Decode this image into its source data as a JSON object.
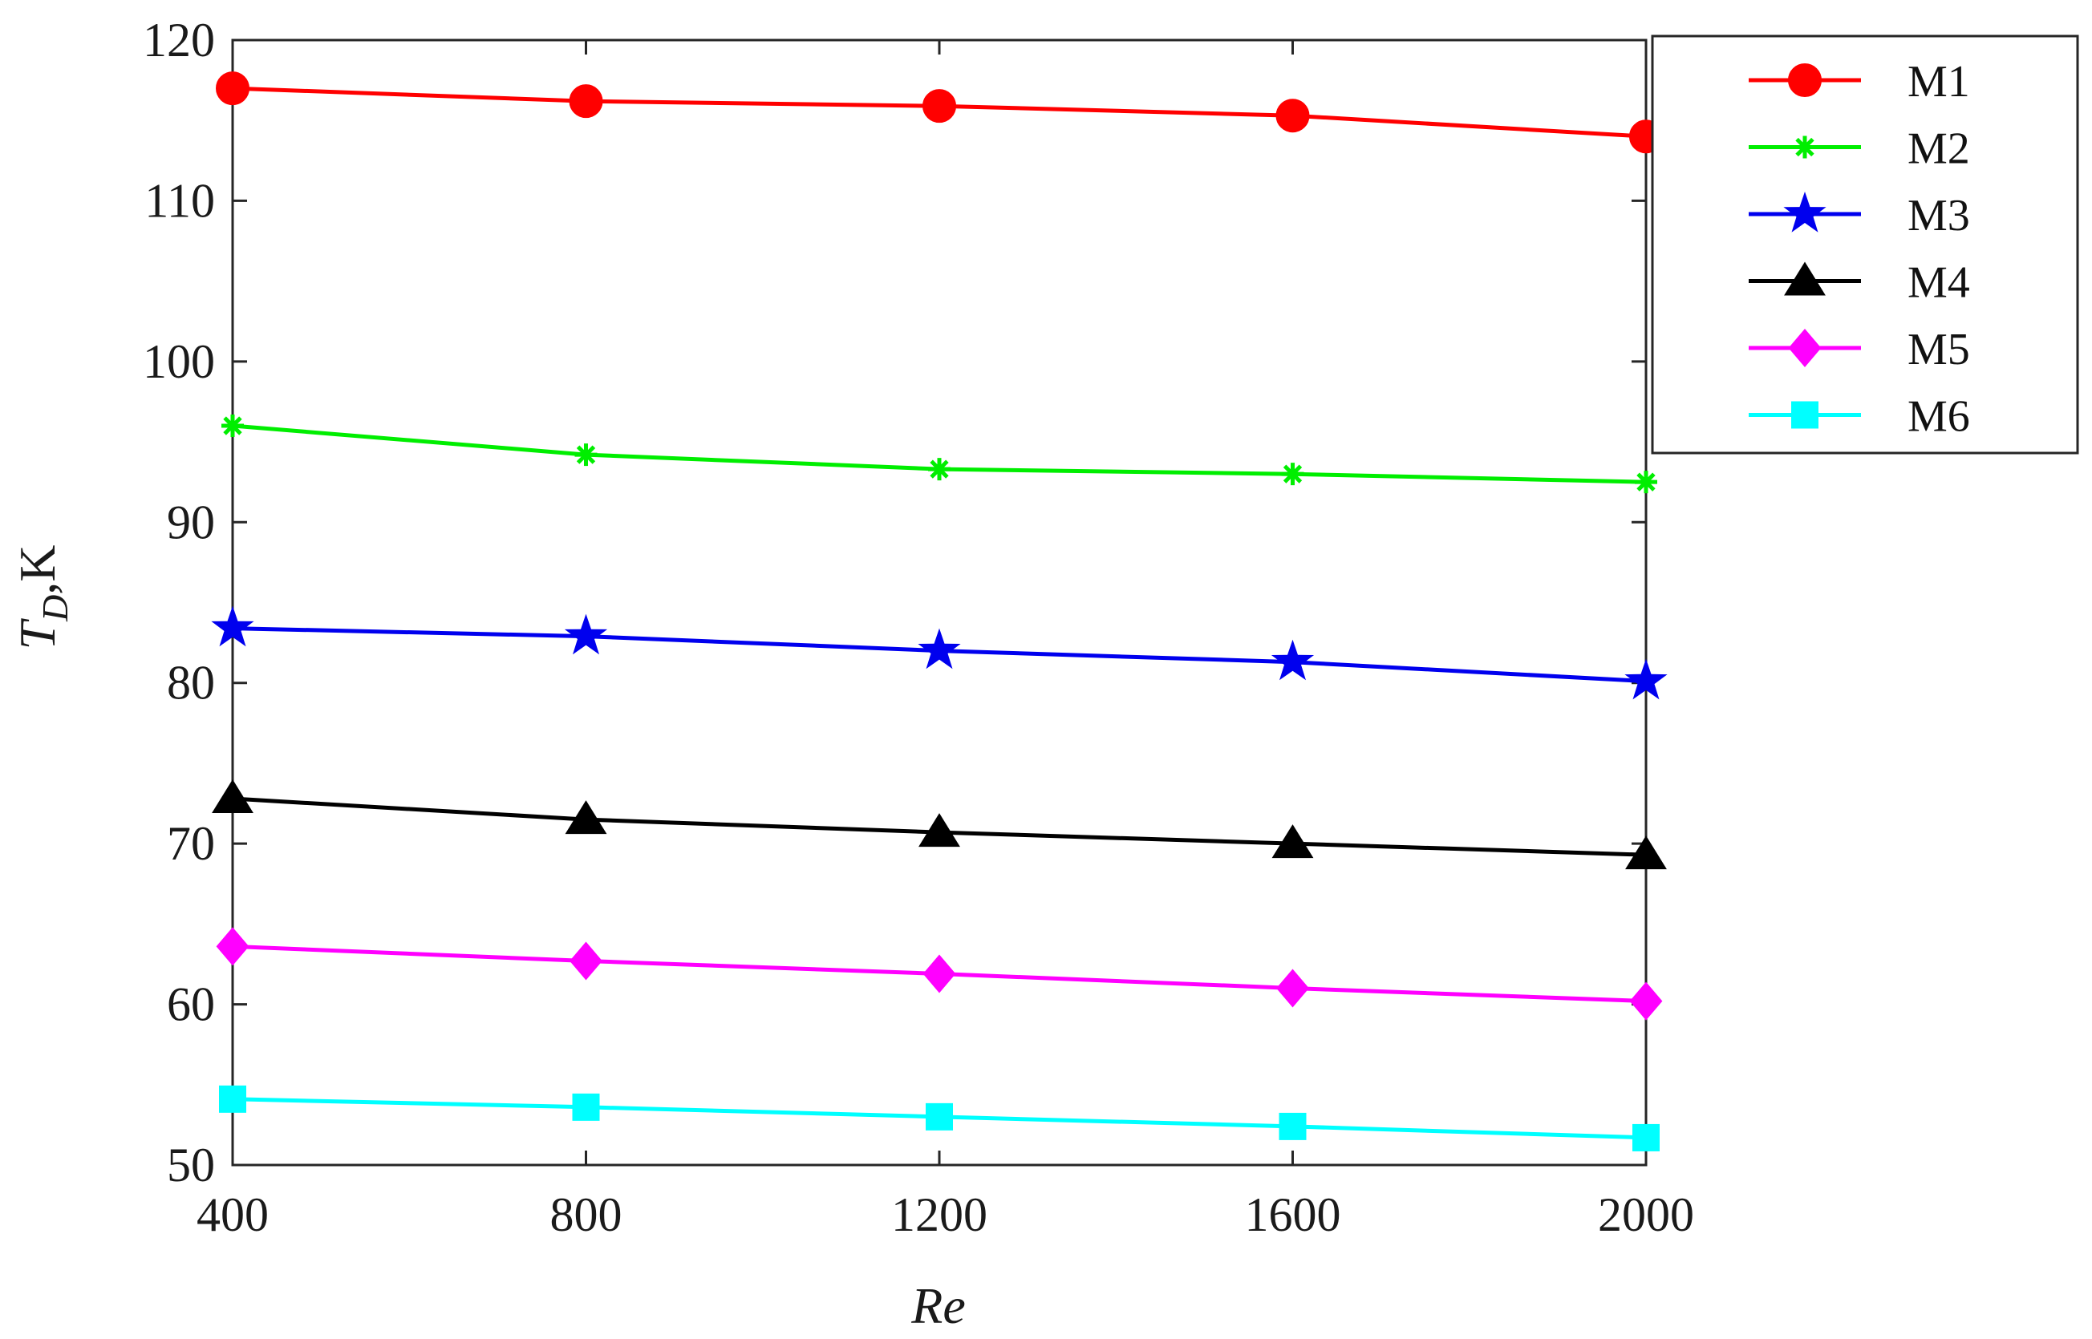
{
  "chart_data": {
    "type": "line",
    "xlabel": "Re",
    "ylabel_main": "T",
    "ylabel_sub": "D",
    "ylabel_unit": ",K",
    "x": [
      400,
      800,
      1200,
      1600,
      2000
    ],
    "xlim": [
      400,
      2000
    ],
    "ylim": [
      50,
      120
    ],
    "xticks": [
      400,
      800,
      1200,
      1600,
      2000
    ],
    "yticks": [
      50,
      60,
      70,
      80,
      90,
      100,
      110,
      120
    ],
    "grid": false,
    "legend_position": "top-right, outside plot",
    "series": [
      {
        "name": "M1",
        "color": "#ff0000",
        "marker": "circle",
        "values": [
          117.0,
          116.2,
          115.9,
          115.3,
          114.0
        ]
      },
      {
        "name": "M2",
        "color": "#00ee00",
        "marker": "asterisk",
        "values": [
          96.0,
          94.2,
          93.3,
          93.0,
          92.5
        ]
      },
      {
        "name": "M3",
        "color": "#0000ee",
        "marker": "star",
        "values": [
          83.4,
          82.9,
          82.0,
          81.3,
          80.1
        ]
      },
      {
        "name": "M4",
        "color": "#000000",
        "marker": "triangle",
        "values": [
          72.8,
          71.5,
          70.7,
          70.0,
          69.3
        ]
      },
      {
        "name": "M5",
        "color": "#ff00ff",
        "marker": "diamond",
        "values": [
          63.6,
          62.7,
          61.9,
          61.0,
          60.2
        ]
      },
      {
        "name": "M6",
        "color": "#00ffff",
        "marker": "square",
        "values": [
          54.1,
          53.6,
          53.0,
          52.4,
          51.7
        ]
      }
    ]
  }
}
